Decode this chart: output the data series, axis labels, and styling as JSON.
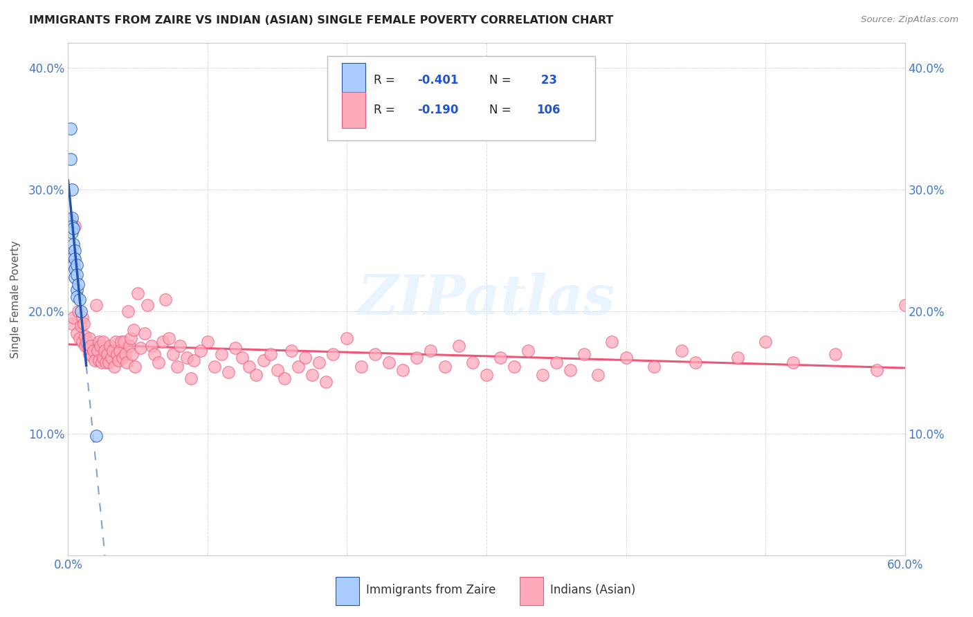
{
  "title": "IMMIGRANTS FROM ZAIRE VS INDIAN (ASIAN) SINGLE FEMALE POVERTY CORRELATION CHART",
  "source": "Source: ZipAtlas.com",
  "ylabel": "Single Female Poverty",
  "xlim": [
    0.0,
    0.6
  ],
  "ylim": [
    0.0,
    0.42
  ],
  "color_blue": "#aaccff",
  "color_pink": "#ffaabb",
  "color_blue_dark": "#2255aa",
  "color_pink_dark": "#ee5577",
  "watermark": "ZIPatlas",
  "zaire_points": [
    [
      0.0015,
      0.275
    ],
    [
      0.002,
      0.35
    ],
    [
      0.002,
      0.325
    ],
    [
      0.003,
      0.3
    ],
    [
      0.003,
      0.277
    ],
    [
      0.003,
      0.27
    ],
    [
      0.003,
      0.265
    ],
    [
      0.004,
      0.268
    ],
    [
      0.004,
      0.255
    ],
    [
      0.004,
      0.245
    ],
    [
      0.004,
      0.238
    ],
    [
      0.005,
      0.25
    ],
    [
      0.005,
      0.243
    ],
    [
      0.005,
      0.235
    ],
    [
      0.005,
      0.228
    ],
    [
      0.006,
      0.238
    ],
    [
      0.006,
      0.23
    ],
    [
      0.006,
      0.218
    ],
    [
      0.006,
      0.212
    ],
    [
      0.007,
      0.222
    ],
    [
      0.008,
      0.21
    ],
    [
      0.009,
      0.2
    ],
    [
      0.02,
      0.098
    ]
  ],
  "indian_points": [
    [
      0.003,
      0.19
    ],
    [
      0.004,
      0.195
    ],
    [
      0.005,
      0.27
    ],
    [
      0.006,
      0.182
    ],
    [
      0.007,
      0.2
    ],
    [
      0.008,
      0.178
    ],
    [
      0.009,
      0.188
    ],
    [
      0.01,
      0.195
    ],
    [
      0.01,
      0.175
    ],
    [
      0.011,
      0.19
    ],
    [
      0.012,
      0.172
    ],
    [
      0.012,
      0.18
    ],
    [
      0.013,
      0.175
    ],
    [
      0.014,
      0.17
    ],
    [
      0.015,
      0.178
    ],
    [
      0.015,
      0.165
    ],
    [
      0.016,
      0.172
    ],
    [
      0.017,
      0.163
    ],
    [
      0.018,
      0.168
    ],
    [
      0.019,
      0.16
    ],
    [
      0.02,
      0.205
    ],
    [
      0.021,
      0.168
    ],
    [
      0.022,
      0.175
    ],
    [
      0.022,
      0.16
    ],
    [
      0.023,
      0.172
    ],
    [
      0.024,
      0.158
    ],
    [
      0.025,
      0.175
    ],
    [
      0.025,
      0.162
    ],
    [
      0.026,
      0.168
    ],
    [
      0.027,
      0.158
    ],
    [
      0.028,
      0.165
    ],
    [
      0.029,
      0.158
    ],
    [
      0.03,
      0.172
    ],
    [
      0.031,
      0.162
    ],
    [
      0.032,
      0.168
    ],
    [
      0.033,
      0.155
    ],
    [
      0.034,
      0.175
    ],
    [
      0.035,
      0.165
    ],
    [
      0.036,
      0.16
    ],
    [
      0.037,
      0.168
    ],
    [
      0.038,
      0.175
    ],
    [
      0.039,
      0.162
    ],
    [
      0.04,
      0.175
    ],
    [
      0.041,
      0.165
    ],
    [
      0.042,
      0.158
    ],
    [
      0.043,
      0.2
    ],
    [
      0.044,
      0.172
    ],
    [
      0.045,
      0.178
    ],
    [
      0.046,
      0.165
    ],
    [
      0.047,
      0.185
    ],
    [
      0.048,
      0.155
    ],
    [
      0.05,
      0.215
    ],
    [
      0.052,
      0.17
    ],
    [
      0.055,
      0.182
    ],
    [
      0.057,
      0.205
    ],
    [
      0.06,
      0.172
    ],
    [
      0.062,
      0.165
    ],
    [
      0.065,
      0.158
    ],
    [
      0.068,
      0.175
    ],
    [
      0.07,
      0.21
    ],
    [
      0.072,
      0.178
    ],
    [
      0.075,
      0.165
    ],
    [
      0.078,
      0.155
    ],
    [
      0.08,
      0.172
    ],
    [
      0.085,
      0.162
    ],
    [
      0.088,
      0.145
    ],
    [
      0.09,
      0.16
    ],
    [
      0.095,
      0.168
    ],
    [
      0.1,
      0.175
    ],
    [
      0.105,
      0.155
    ],
    [
      0.11,
      0.165
    ],
    [
      0.115,
      0.15
    ],
    [
      0.12,
      0.17
    ],
    [
      0.125,
      0.162
    ],
    [
      0.13,
      0.155
    ],
    [
      0.135,
      0.148
    ],
    [
      0.14,
      0.16
    ],
    [
      0.145,
      0.165
    ],
    [
      0.15,
      0.152
    ],
    [
      0.155,
      0.145
    ],
    [
      0.16,
      0.168
    ],
    [
      0.165,
      0.155
    ],
    [
      0.17,
      0.162
    ],
    [
      0.175,
      0.148
    ],
    [
      0.18,
      0.158
    ],
    [
      0.185,
      0.142
    ],
    [
      0.19,
      0.165
    ],
    [
      0.2,
      0.178
    ],
    [
      0.21,
      0.155
    ],
    [
      0.22,
      0.165
    ],
    [
      0.23,
      0.158
    ],
    [
      0.24,
      0.152
    ],
    [
      0.25,
      0.162
    ],
    [
      0.26,
      0.168
    ],
    [
      0.27,
      0.155
    ],
    [
      0.28,
      0.172
    ],
    [
      0.29,
      0.158
    ],
    [
      0.3,
      0.148
    ],
    [
      0.31,
      0.162
    ],
    [
      0.32,
      0.155
    ],
    [
      0.33,
      0.168
    ],
    [
      0.34,
      0.148
    ],
    [
      0.35,
      0.158
    ],
    [
      0.36,
      0.152
    ],
    [
      0.37,
      0.165
    ],
    [
      0.38,
      0.148
    ],
    [
      0.39,
      0.175
    ],
    [
      0.4,
      0.162
    ],
    [
      0.42,
      0.155
    ],
    [
      0.44,
      0.168
    ],
    [
      0.45,
      0.158
    ],
    [
      0.48,
      0.162
    ],
    [
      0.5,
      0.175
    ],
    [
      0.52,
      0.158
    ],
    [
      0.55,
      0.165
    ],
    [
      0.58,
      0.152
    ],
    [
      0.6,
      0.205
    ]
  ],
  "background_color": "#ffffff",
  "grid_color": "#cccccc"
}
